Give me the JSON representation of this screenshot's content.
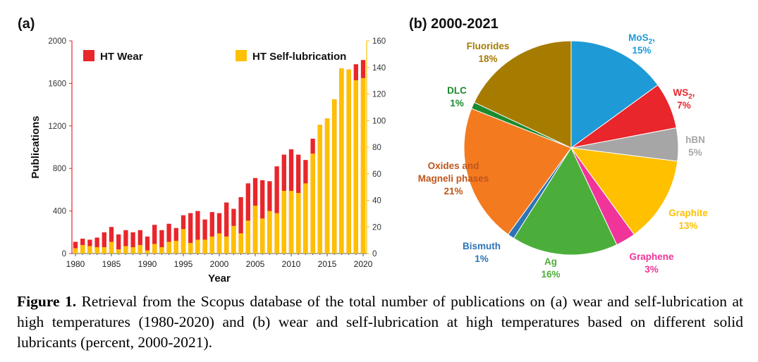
{
  "panel_a_label": "(a)",
  "panel_b_label": "(b) 2000-2021",
  "chart_data": [
    {
      "type": "bar",
      "stacked": true,
      "xlabel": "Year",
      "ylabel": "Publications",
      "ylim": [
        0,
        2000
      ],
      "y2lim": [
        0,
        160
      ],
      "yticks": [
        "0",
        "400",
        "800",
        "1200",
        "1600",
        "2000"
      ],
      "y2ticks": [
        "0",
        "20",
        "40",
        "60",
        "80",
        "100",
        "120",
        "140",
        "160"
      ],
      "xticks": [
        "1980",
        "1985",
        "1990",
        "1995",
        "2000",
        "2005",
        "2010",
        "2015",
        "2020"
      ],
      "legend": [
        "HT Wear",
        "HT Self-lubrication"
      ],
      "colors": {
        "HT Wear": "#e8262b",
        "HT Self-lubrication": "#ffc000"
      },
      "categories": [
        1980,
        1981,
        1982,
        1983,
        1984,
        1985,
        1986,
        1987,
        1988,
        1989,
        1990,
        1991,
        1992,
        1993,
        1994,
        1995,
        1996,
        1997,
        1998,
        1999,
        2000,
        2001,
        2002,
        2003,
        2004,
        2005,
        2006,
        2007,
        2008,
        2009,
        2010,
        2011,
        2012,
        2013,
        2014,
        2015,
        2016,
        2017,
        2018,
        2019,
        2020
      ],
      "series": [
        {
          "name": "HT Self-lubrication",
          "values": [
            50,
            80,
            70,
            60,
            60,
            110,
            40,
            70,
            60,
            80,
            30,
            90,
            60,
            110,
            120,
            230,
            100,
            130,
            130,
            160,
            190,
            160,
            260,
            190,
            310,
            450,
            330,
            400,
            380,
            590,
            590,
            570,
            660,
            940,
            1210,
            1270,
            1450,
            1740,
            1730,
            1630,
            1650
          ]
        },
        {
          "name": "HT Wear",
          "values": [
            110,
            140,
            130,
            150,
            200,
            250,
            180,
            220,
            200,
            220,
            160,
            270,
            220,
            280,
            240,
            360,
            380,
            400,
            320,
            390,
            380,
            480,
            420,
            530,
            660,
            710,
            690,
            680,
            820,
            930,
            980,
            930,
            880,
            1080,
            1210,
            1270,
            1450,
            1740,
            1730,
            1780,
            1820
          ]
        }
      ]
    },
    {
      "type": "pie",
      "title": "(b) 2000-2021",
      "slices": [
        {
          "label": "MoS",
          "sub": "2",
          "pct_label": "15%",
          "value": 15,
          "color": "#1e9ad6",
          "text_color": "#1e9ad6"
        },
        {
          "label": "WS",
          "sub": "2",
          "pct_label": "7%",
          "value": 7,
          "color": "#e8262b",
          "text_color": "#e8262b"
        },
        {
          "label": "hBN",
          "sub": "",
          "pct_label": "5%",
          "value": 5,
          "color": "#a6a6a6",
          "text_color": "#a6a6a6"
        },
        {
          "label": "Graphite",
          "sub": "",
          "pct_label": "13%",
          "value": 13,
          "color": "#ffc000",
          "text_color": "#ffc000"
        },
        {
          "label": "Graphene",
          "sub": "",
          "pct_label": "3%",
          "value": 3,
          "color": "#f0349a",
          "text_color": "#f0349a"
        },
        {
          "label": "Ag",
          "sub": "",
          "pct_label": "16%",
          "value": 16,
          "color": "#4cae3a",
          "text_color": "#4cae3a"
        },
        {
          "label": "Bismuth",
          "sub": "",
          "pct_label": "1%",
          "value": 1,
          "color": "#2e74b5",
          "text_color": "#2e74b5"
        },
        {
          "label": "Oxides and Magneli phases",
          "sub": "",
          "pct_label": "21%",
          "value": 21,
          "color": "#f47a20",
          "text_color": "#c0561a"
        },
        {
          "label": "DLC",
          "sub": "",
          "pct_label": "1%",
          "value": 1,
          "color": "#1c8a2e",
          "text_color": "#1c8a2e"
        },
        {
          "label": "Fluorides",
          "sub": "",
          "pct_label": "18%",
          "value": 18,
          "color": "#a67c00",
          "text_color": "#a67c00"
        }
      ]
    }
  ],
  "caption": {
    "label": "Figure 1.",
    "text": " Retrieval from the Scopus database of the total number of publications on (a) wear and self-lubrication at high temperatures (1980-2020) and (b) wear and self-lubrication at high temperatures based on different solid lubricants (percent, 2000-2021)."
  }
}
